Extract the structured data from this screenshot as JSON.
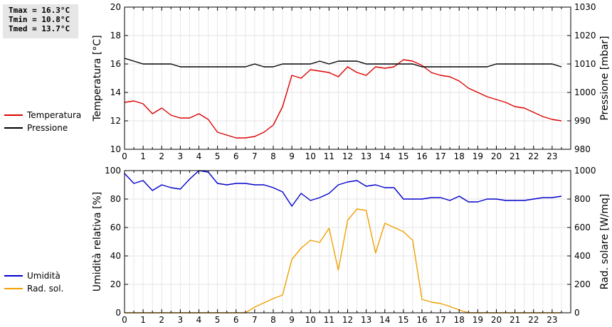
{
  "stats": {
    "tmax": "Tmax = 16.3°C",
    "tmin": "Tmin = 10.8°C",
    "tmed": "Tmed = 13.7°C"
  },
  "chart_data": [
    {
      "type": "line",
      "ylabel": "Temperatura [°C]",
      "y2label": "Pressione [mbar]",
      "xlim": [
        0,
        24
      ],
      "ylim": [
        10,
        20
      ],
      "y2lim": [
        980,
        1030
      ],
      "xticks": [
        0,
        1,
        2,
        3,
        4,
        5,
        6,
        7,
        8,
        9,
        10,
        11,
        12,
        13,
        14,
        15,
        16,
        17,
        18,
        19,
        20,
        21,
        22,
        23
      ],
      "yticks": [
        10,
        12,
        14,
        16,
        18,
        20
      ],
      "y2ticks": [
        980,
        990,
        1000,
        1010,
        1020,
        1030
      ],
      "grid": true,
      "legend": "left",
      "series": [
        {
          "name": "Temperatura",
          "color": "#dd0000",
          "axis": "left",
          "x": [
            0,
            0.5,
            1,
            1.5,
            2,
            2.5,
            3,
            3.5,
            4,
            4.5,
            5,
            5.5,
            6,
            6.5,
            7,
            7.5,
            8,
            8.5,
            9,
            9.5,
            10,
            10.5,
            11,
            11.5,
            12,
            12.5,
            13,
            13.5,
            14,
            14.5,
            15,
            15.5,
            16,
            16.5,
            17,
            17.5,
            18,
            18.5,
            19,
            19.5,
            20,
            20.5,
            21,
            21.5,
            22,
            22.5,
            23,
            23.5
          ],
          "values": [
            13.3,
            13.4,
            13.2,
            12.5,
            12.9,
            12.4,
            12.2,
            12.2,
            12.5,
            12.1,
            11.2,
            11.0,
            10.8,
            10.8,
            10.9,
            11.2,
            11.7,
            13.0,
            15.2,
            15.0,
            15.6,
            15.5,
            15.4,
            15.1,
            15.8,
            15.4,
            15.2,
            15.8,
            15.7,
            15.8,
            16.3,
            16.2,
            15.9,
            15.4,
            15.2,
            15.1,
            14.8,
            14.3,
            14.0,
            13.7,
            13.5,
            13.3,
            13.0,
            12.9,
            12.6,
            12.3,
            12.1,
            12.0
          ]
        },
        {
          "name": "Pressione",
          "color": "#000000",
          "axis": "right",
          "x": [
            0,
            0.5,
            1,
            1.5,
            2,
            2.5,
            3,
            3.5,
            4,
            4.5,
            5,
            5.5,
            6,
            6.5,
            7,
            7.5,
            8,
            8.5,
            9,
            9.5,
            10,
            10.5,
            11,
            11.5,
            12,
            12.5,
            13,
            13.5,
            14,
            14.5,
            15,
            15.5,
            16,
            16.5,
            17,
            17.5,
            18,
            18.5,
            19,
            19.5,
            20,
            20.5,
            21,
            21.5,
            22,
            22.5,
            23,
            23.5
          ],
          "values": [
            1012,
            1011,
            1010,
            1010,
            1010,
            1010,
            1009,
            1009,
            1009,
            1009,
            1009,
            1009,
            1009,
            1009,
            1010,
            1009,
            1009,
            1010,
            1010,
            1010,
            1010,
            1011,
            1010,
            1011,
            1011,
            1011,
            1010,
            1010,
            1010,
            1010,
            1010,
            1010,
            1009,
            1009,
            1009,
            1009,
            1009,
            1009,
            1009,
            1009,
            1010,
            1010,
            1010,
            1010,
            1010,
            1010,
            1010,
            1009
          ]
        }
      ]
    },
    {
      "type": "line",
      "ylabel": "Umidità relativa [%]",
      "y2label": "Rad. solare [W/mq]",
      "xlim": [
        0,
        24
      ],
      "ylim": [
        0,
        100
      ],
      "y2lim": [
        0,
        1000
      ],
      "xticks": [
        0,
        1,
        2,
        3,
        4,
        5,
        6,
        7,
        8,
        9,
        10,
        11,
        12,
        13,
        14,
        15,
        16,
        17,
        18,
        19,
        20,
        21,
        22,
        23
      ],
      "yticks": [
        0,
        20,
        40,
        60,
        80,
        100
      ],
      "y2ticks": [
        0,
        200,
        400,
        600,
        800,
        1000
      ],
      "grid": true,
      "legend": "left",
      "series": [
        {
          "name": "Umidità",
          "color": "#0000cc",
          "axis": "left",
          "x": [
            0,
            0.5,
            1,
            1.5,
            2,
            2.5,
            3,
            3.5,
            4,
            4.5,
            5,
            5.5,
            6,
            6.5,
            7,
            7.5,
            8,
            8.5,
            9,
            9.5,
            10,
            10.5,
            11,
            11.5,
            12,
            12.5,
            13,
            13.5,
            14,
            14.5,
            15,
            15.5,
            16,
            16.5,
            17,
            17.5,
            18,
            18.5,
            19,
            19.5,
            20,
            20.5,
            21,
            21.5,
            22,
            22.5,
            23,
            23.5
          ],
          "values": [
            98,
            91,
            93,
            86,
            90,
            88,
            87,
            94,
            100,
            99,
            91,
            90,
            91,
            91,
            90,
            90,
            88,
            85,
            75,
            84,
            79,
            81,
            84,
            90,
            92,
            93,
            89,
            90,
            88,
            88,
            80,
            80,
            80,
            81,
            81,
            79,
            82,
            78,
            78,
            80,
            80,
            79,
            79,
            79,
            80,
            81,
            81,
            82
          ]
        },
        {
          "name": "Rad. sol.",
          "color": "#f0a000",
          "axis": "right",
          "x": [
            0,
            0.5,
            1,
            1.5,
            2,
            2.5,
            3,
            3.5,
            4,
            4.5,
            5,
            5.5,
            6,
            6.5,
            7,
            7.5,
            8,
            8.5,
            9,
            9.5,
            10,
            10.5,
            11,
            11.5,
            12,
            12.5,
            13,
            13.5,
            14,
            14.5,
            15,
            15.5,
            16,
            16.5,
            17,
            17.5,
            18,
            18.5,
            19,
            19.5,
            20,
            20.5,
            21,
            21.5,
            22,
            22.5,
            23,
            23.5
          ],
          "values": [
            0,
            0,
            0,
            0,
            0,
            0,
            0,
            0,
            0,
            0,
            0,
            0,
            0,
            0,
            40,
            70,
            100,
            125,
            375,
            455,
            510,
            495,
            595,
            300,
            650,
            730,
            720,
            420,
            630,
            600,
            570,
            510,
            95,
            75,
            65,
            45,
            20,
            0,
            0,
            0,
            0,
            0,
            0,
            0,
            0,
            0,
            0,
            0
          ]
        }
      ]
    }
  ]
}
